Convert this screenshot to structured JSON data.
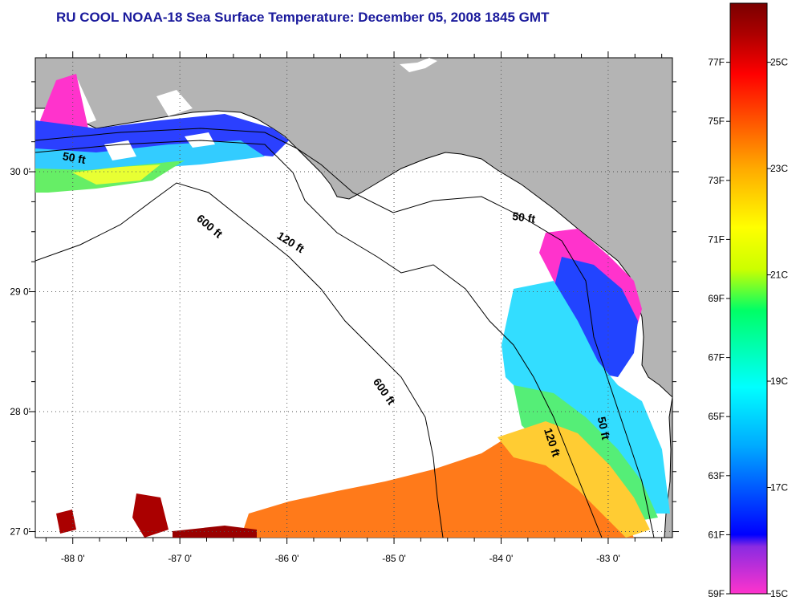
{
  "title": "RU COOL  NOAA-18  Sea Surface Temperature:  December 05, 2008 1845 GMT",
  "map": {
    "lon_range": [
      -88.35,
      -82.4
    ],
    "lat_range": [
      26.95,
      30.95
    ],
    "lon_ticks": [
      -88,
      -87,
      -86,
      -85,
      -84,
      -83
    ],
    "lat_ticks": [
      27,
      28,
      29,
      30
    ],
    "lon_tick_labels": [
      "-88 0'",
      "-87 0'",
      "-86 0'",
      "-85 0'",
      "-84 0'",
      "-83 0'"
    ],
    "lat_tick_labels": [
      "27 0'",
      "28 0'",
      "29 0'",
      "30 0'"
    ],
    "land_color": "#b4b4b4",
    "ocean_no_data_color": "#ffffff",
    "grid": "dotted",
    "contour_labels": [
      {
        "text": "50 ft",
        "lon": -88.1,
        "lat": 30.1,
        "angle": 10
      },
      {
        "text": "600 ft",
        "lon": -86.85,
        "lat": 29.6,
        "angle": 40
      },
      {
        "text": "120 ft",
        "lon": -86.1,
        "lat": 29.45,
        "angle": 32
      },
      {
        "text": "50 ft",
        "lon": -83.9,
        "lat": 29.6,
        "angle": 8
      },
      {
        "text": "600 ft",
        "lon": -85.2,
        "lat": 28.25,
        "angle": 55
      },
      {
        "text": "120 ft",
        "lon": -83.6,
        "lat": 27.85,
        "angle": 72
      },
      {
        "text": "50 ft",
        "lon": -83.1,
        "lat": 27.95,
        "angle": 78
      }
    ]
  },
  "colorbar": {
    "f_labels": [
      "77F",
      "75F",
      "73F",
      "71F",
      "69F",
      "67F",
      "65F",
      "63F",
      "61F",
      "59F"
    ],
    "c_labels": [
      "25C",
      "23C",
      "21C",
      "19C",
      "17C",
      "15C"
    ],
    "stops": [
      "#ff33cc",
      "#8a2be2",
      "#0000ff",
      "#00aaff",
      "#00ffff",
      "#00ff66",
      "#ccff00",
      "#ffff00",
      "#ffaa00",
      "#ff5500",
      "#ff0000",
      "#aa0000",
      "#7a0000"
    ]
  }
}
